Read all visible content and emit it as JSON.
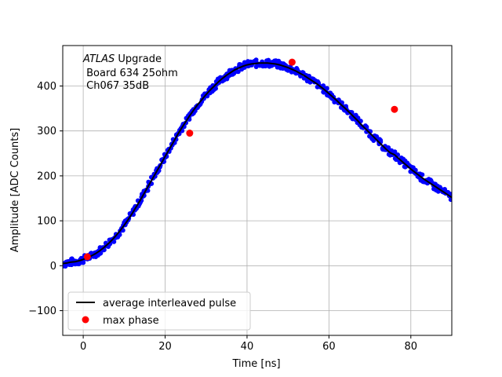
{
  "chart_data": {
    "type": "scatter",
    "title": "",
    "xlabel": "Time [ns]",
    "ylabel": "Amplitude [ADC Counts]",
    "xlim": [
      -5,
      90
    ],
    "ylim": [
      -155,
      490
    ],
    "xticks": [
      0,
      20,
      40,
      60,
      80
    ],
    "yticks": [
      -100,
      0,
      100,
      200,
      300,
      400
    ],
    "grid": true,
    "legend_position": "lower-left",
    "annotation": {
      "line1_italic": "ATLAS",
      "line1_rest": " Upgrade",
      "line2": " Board 634 25ohm",
      "line3": " Ch067 35dB"
    },
    "series": [
      {
        "name": "",
        "kind": "scatter",
        "color": "#0000ff",
        "description_points": "dense blue sample points along the pulse",
        "x": [
          -5,
          -4,
          -3,
          -2,
          -1,
          0,
          1,
          2,
          3,
          4,
          5,
          6,
          7,
          8,
          9,
          10,
          11,
          12,
          13,
          14,
          15,
          16,
          17,
          18,
          19,
          20,
          21,
          22,
          23,
          24,
          25,
          26,
          27,
          28,
          29,
          30,
          31,
          32,
          33,
          34,
          35,
          36,
          37,
          38,
          39,
          40,
          41,
          42,
          43,
          44,
          45,
          46,
          47,
          48,
          49,
          50,
          51,
          52,
          53,
          54,
          55,
          56,
          57,
          58,
          59,
          60,
          61,
          62,
          63,
          64,
          65,
          66,
          67,
          68,
          69,
          70,
          71,
          72,
          73,
          74,
          75,
          76,
          77,
          78,
          79,
          80,
          81,
          82,
          83,
          84,
          85,
          86,
          87,
          88,
          89,
          90
        ],
        "y": [
          5,
          6,
          8,
          9,
          11,
          14,
          18,
          22,
          27,
          33,
          40,
          48,
          57,
          67,
          78,
          90,
          103,
          117,
          132,
          147,
          163,
          179,
          195,
          211,
          227,
          243,
          259,
          275,
          291,
          306,
          320,
          334,
          347,
          359,
          370,
          381,
          391,
          400,
          409,
          417,
          424,
          430,
          436,
          440,
          444,
          447,
          449,
          450,
          451,
          451,
          451,
          450,
          449,
          447,
          444,
          441,
          437,
          433,
          428,
          423,
          417,
          411,
          405,
          398,
          391,
          383,
          375,
          367,
          358,
          350,
          341,
          332,
          323,
          313,
          304,
          295,
          286,
          277,
          268,
          259,
          251,
          247,
          239,
          231,
          223,
          215,
          208,
          201,
          194,
          188,
          182,
          176,
          170,
          164,
          158,
          152
        ]
      },
      {
        "name": "average interleaved pulse",
        "kind": "line",
        "color": "#000000"
      },
      {
        "name": "max phase",
        "kind": "scatter",
        "color": "#ff0000",
        "x": [
          1,
          26,
          51,
          76
        ],
        "y": [
          20,
          295,
          453,
          348
        ]
      }
    ]
  }
}
